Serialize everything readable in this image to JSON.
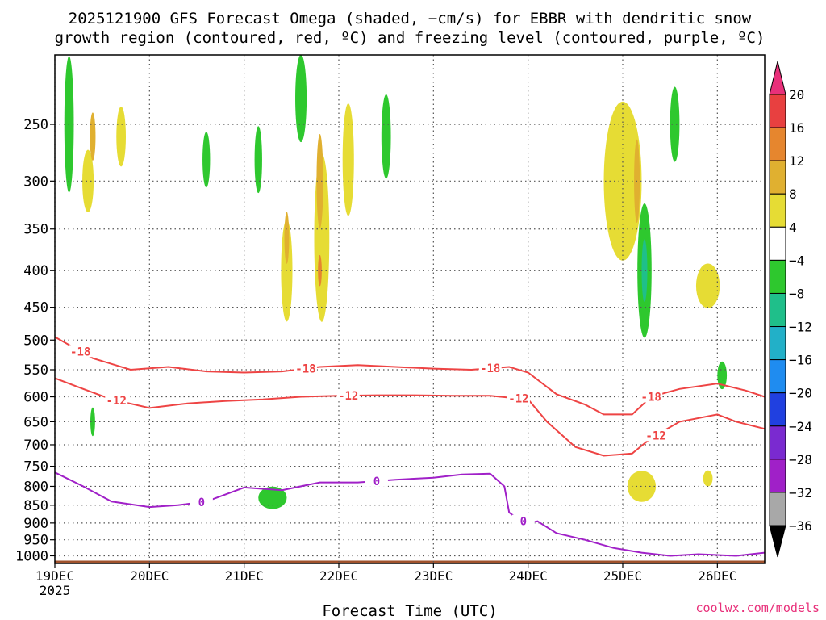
{
  "chart_data": {
    "type": "heatmap",
    "title_line1": "2025121900 GFS Forecast Omega (shaded, −cm/s) for EBBR with dendritic snow",
    "title_line2": "growth region (contoured, red, ºC) and freezing level (contoured, purple, ºC)",
    "xlabel": "Forecast Time (UTC)",
    "credit": "coolwx.com/models",
    "x_ticks": [
      {
        "label": "19DEC",
        "day": 0
      },
      {
        "label": "20DEC",
        "day": 1
      },
      {
        "label": "21DEC",
        "day": 2
      },
      {
        "label": "22DEC",
        "day": 3
      },
      {
        "label": "23DEC",
        "day": 4
      },
      {
        "label": "24DEC",
        "day": 5
      },
      {
        "label": "25DEC",
        "day": 6
      },
      {
        "label": "26DEC",
        "day": 7
      }
    ],
    "x_year": "2025",
    "xlim_days": [
      0,
      7.5
    ],
    "y_ticks": [
      250,
      300,
      350,
      400,
      450,
      500,
      550,
      600,
      650,
      700,
      750,
      800,
      850,
      900,
      950,
      1000
    ],
    "ylim_hpa": [
      200,
      1025
    ],
    "y_scale": "log-pressure",
    "grid": true,
    "colorbar": {
      "labels": [
        "20",
        "16",
        "12",
        "8",
        "4",
        "−4",
        "−8",
        "−12",
        "−16",
        "−20",
        "−24",
        "−28",
        "−32",
        "−36"
      ],
      "colors": [
        "#e8307a",
        "#e84040",
        "#e6862e",
        "#e0b030",
        "#e6dc34",
        "#ffffff",
        "#2ec82e",
        "#1fbf8a",
        "#22b0c8",
        "#1f8cf0",
        "#2040e0",
        "#7a2ad0",
        "#a020c8",
        "#a8a8a8",
        "#000000"
      ]
    },
    "contours": {
      "dgz_red": {
        "color": "#ee4444",
        "labels": [
          "-18",
          "-18",
          "-18",
          "-18",
          "-12",
          "-12",
          "-12",
          "-12"
        ],
        "minus18": [
          [
            0,
            495
          ],
          [
            0.4,
            530
          ],
          [
            0.8,
            550
          ],
          [
            1.2,
            545
          ],
          [
            1.6,
            553
          ],
          [
            2.0,
            555
          ],
          [
            2.4,
            553
          ],
          [
            2.8,
            545
          ],
          [
            3.2,
            542
          ],
          [
            3.6,
            545
          ],
          [
            4.0,
            548
          ],
          [
            4.4,
            550
          ],
          [
            4.8,
            545
          ],
          [
            5.0,
            555
          ],
          [
            5.3,
            595
          ],
          [
            5.6,
            615
          ],
          [
            5.8,
            635
          ],
          [
            6.1,
            635
          ],
          [
            6.3,
            600
          ],
          [
            6.6,
            585
          ],
          [
            7.0,
            575
          ],
          [
            7.3,
            588
          ],
          [
            7.5,
            600
          ]
        ],
        "minus12": [
          [
            0,
            565
          ],
          [
            0.3,
            585
          ],
          [
            0.6,
            605
          ],
          [
            1.0,
            622
          ],
          [
            1.4,
            613
          ],
          [
            1.8,
            608
          ],
          [
            2.2,
            605
          ],
          [
            2.6,
            600
          ],
          [
            3.0,
            598
          ],
          [
            3.4,
            597
          ],
          [
            3.8,
            597
          ],
          [
            4.2,
            598
          ],
          [
            4.6,
            598
          ],
          [
            5.0,
            605
          ],
          [
            5.2,
            650
          ],
          [
            5.5,
            705
          ],
          [
            5.8,
            725
          ],
          [
            6.1,
            720
          ],
          [
            6.3,
            685
          ],
          [
            6.6,
            650
          ],
          [
            7.0,
            635
          ],
          [
            7.2,
            650
          ],
          [
            7.5,
            665
          ]
        ]
      },
      "freezing_purple": {
        "color": "#a020c8",
        "labels": [
          "0",
          "0",
          "0"
        ],
        "zero": [
          [
            0,
            765
          ],
          [
            0.3,
            800
          ],
          [
            0.6,
            840
          ],
          [
            1.0,
            855
          ],
          [
            1.3,
            850
          ],
          [
            1.6,
            840
          ],
          [
            2.0,
            803
          ],
          [
            2.4,
            810
          ],
          [
            2.8,
            790
          ],
          [
            3.2,
            790
          ],
          [
            3.6,
            783
          ],
          [
            4.0,
            778
          ],
          [
            4.3,
            770
          ],
          [
            4.6,
            768
          ],
          [
            4.75,
            800
          ],
          [
            4.8,
            870
          ],
          [
            4.9,
            890
          ],
          [
            5.0,
            900
          ],
          [
            5.1,
            895
          ],
          [
            5.3,
            930
          ],
          [
            5.6,
            950
          ],
          [
            5.9,
            975
          ],
          [
            6.2,
            990
          ],
          [
            6.5,
            1000
          ],
          [
            6.8,
            995
          ],
          [
            7.2,
            1000
          ],
          [
            7.5,
            990
          ]
        ]
      }
    },
    "shading_regions": [
      {
        "level": 4,
        "day": 0.35,
        "p": 300,
        "w": 0.12,
        "h": 60
      },
      {
        "level": 8,
        "day": 0.4,
        "p": 260,
        "w": 0.06,
        "h": 40
      },
      {
        "level": 4,
        "day": 0.7,
        "p": 260,
        "w": 0.1,
        "h": 50
      },
      {
        "level": 4,
        "day": 2.45,
        "p": 400,
        "w": 0.12,
        "h": 130
      },
      {
        "level": 8,
        "day": 2.45,
        "p": 360,
        "w": 0.05,
        "h": 60
      },
      {
        "level": 4,
        "day": 2.82,
        "p": 360,
        "w": 0.16,
        "h": 190
      },
      {
        "level": 8,
        "day": 2.8,
        "p": 300,
        "w": 0.07,
        "h": 90
      },
      {
        "level": 12,
        "day": 2.8,
        "p": 400,
        "w": 0.04,
        "h": 40
      },
      {
        "level": 4,
        "day": 3.1,
        "p": 280,
        "w": 0.12,
        "h": 100
      },
      {
        "level": 4,
        "day": 6.0,
        "p": 300,
        "w": 0.4,
        "h": 150
      },
      {
        "level": 8,
        "day": 6.15,
        "p": 300,
        "w": 0.06,
        "h": 80
      },
      {
        "level": 4,
        "day": 6.9,
        "p": 420,
        "w": 0.25,
        "h": 60
      },
      {
        "level": 4,
        "day": 6.2,
        "p": 800,
        "w": 0.3,
        "h": 80
      },
      {
        "level": 4,
        "day": 6.9,
        "p": 780,
        "w": 0.1,
        "h": 40
      },
      {
        "level": -4,
        "day": 0.15,
        "p": 250,
        "w": 0.1,
        "h": 120
      },
      {
        "level": -4,
        "day": 2.6,
        "p": 230,
        "w": 0.12,
        "h": 70
      },
      {
        "level": -4,
        "day": 3.5,
        "p": 260,
        "w": 0.1,
        "h": 70
      },
      {
        "level": -4,
        "day": 1.6,
        "p": 280,
        "w": 0.08,
        "h": 50
      },
      {
        "level": -4,
        "day": 2.15,
        "p": 280,
        "w": 0.08,
        "h": 60
      },
      {
        "level": -4,
        "day": 6.23,
        "p": 400,
        "w": 0.15,
        "h": 170
      },
      {
        "level": -8,
        "day": 6.23,
        "p": 400,
        "w": 0.06,
        "h": 80
      },
      {
        "level": -4,
        "day": 6.55,
        "p": 250,
        "w": 0.1,
        "h": 60
      },
      {
        "level": -4,
        "day": 7.05,
        "p": 560,
        "w": 0.1,
        "h": 50
      },
      {
        "level": -4,
        "day": 2.3,
        "p": 830,
        "w": 0.3,
        "h": 60
      },
      {
        "level": -4,
        "day": 0.4,
        "p": 650,
        "w": 0.05,
        "h": 60
      }
    ]
  }
}
